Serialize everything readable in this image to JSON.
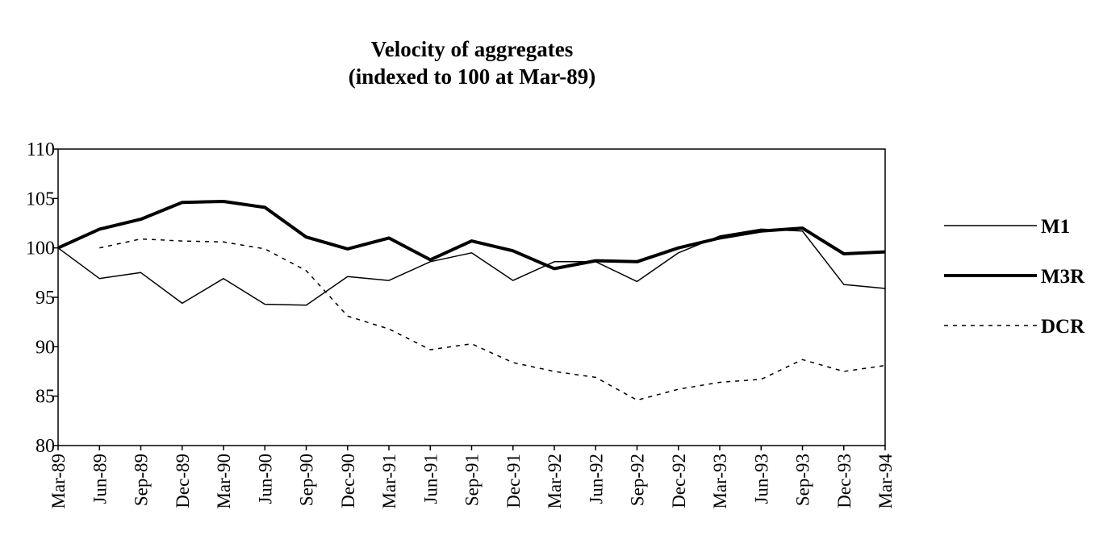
{
  "chart_data": {
    "type": "line",
    "title": "Velocity of aggregates",
    "subtitle": "(indexed to 100 at Mar-89)",
    "categories": [
      "Mar-89",
      "Jun-89",
      "Sep-89",
      "Dec-89",
      "Mar-90",
      "Jun-90",
      "Sep-90",
      "Dec-90",
      "Mar-91",
      "Jun-91",
      "Sep-91",
      "Dec-91",
      "Mar-92",
      "Jun-92",
      "Sep-92",
      "Dec-92",
      "Mar-93",
      "Jun-93",
      "Sep-93",
      "Dec-93",
      "Mar-94"
    ],
    "series": [
      {
        "name": "M1",
        "color": "#000000",
        "line_width": 1.5,
        "dashed": false,
        "values": [
          100,
          96.9,
          97.5,
          94.4,
          96.9,
          94.3,
          94.2,
          97.1,
          96.7,
          98.6,
          99.5,
          96.7,
          98.6,
          98.6,
          96.6,
          99.5,
          101.2,
          101.9,
          101.7,
          96.3,
          95.9
        ]
      },
      {
        "name": "M3R",
        "color": "#000000",
        "line_width": 4,
        "dashed": false,
        "values": [
          100,
          101.9,
          102.9,
          104.6,
          104.7,
          104.1,
          101.1,
          99.9,
          101.0,
          98.8,
          100.7,
          99.7,
          97.9,
          98.7,
          98.6,
          100.0,
          101.0,
          101.7,
          102.0,
          99.4,
          99.6
        ]
      },
      {
        "name": "DCR",
        "color": "#000000",
        "line_width": 1.5,
        "dashed": true,
        "values": [
          null,
          100,
          100.9,
          100.7,
          100.6,
          99.9,
          97.7,
          93.1,
          91.8,
          89.7,
          90.3,
          88.4,
          87.5,
          86.9,
          84.6,
          85.7,
          86.4,
          86.7,
          88.7,
          87.5,
          88.1
        ]
      }
    ],
    "ylim": [
      80,
      110
    ],
    "yticks": [
      80,
      85,
      90,
      95,
      100,
      105,
      110
    ],
    "grid": false,
    "legend": "right"
  }
}
